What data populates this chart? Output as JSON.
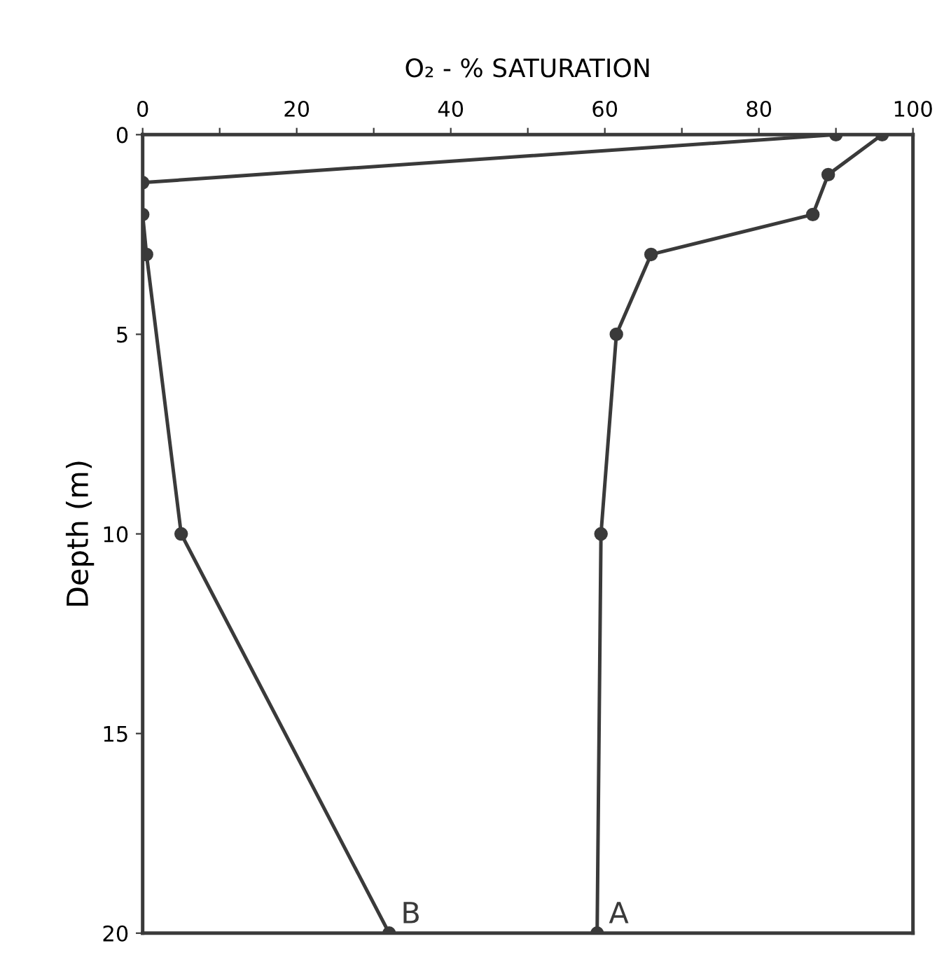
{
  "chart_data": {
    "type": "line",
    "xlabel": "O₂ - % SATURATION",
    "ylabel": "Depth (m)",
    "xlim": [
      0,
      100
    ],
    "ylim": [
      20,
      0
    ],
    "xticks": [
      0,
      {
        "value": 10,
        "label": null
      },
      20,
      {
        "value": 30,
        "label": null
      },
      40,
      {
        "value": 50,
        "label": null
      },
      60,
      {
        "value": 70,
        "label": null
      },
      80,
      {
        "value": 90,
        "label": null
      },
      100
    ],
    "yticks": [
      0,
      5,
      10,
      15,
      20
    ],
    "marker": "circle",
    "grid": false,
    "legend": false,
    "series": [
      {
        "name": "A",
        "color": "#3a3a3a",
        "x": [
          96,
          89,
          87,
          66,
          61.5,
          59.5,
          59
        ],
        "values": [
          0,
          1,
          2,
          3,
          5,
          10,
          20
        ]
      },
      {
        "name": "B",
        "color": "#3a3a3a",
        "x": [
          90,
          0,
          0,
          0.5,
          5,
          32
        ],
        "values": [
          0,
          1.2,
          2,
          3,
          10,
          20
        ]
      }
    ]
  }
}
